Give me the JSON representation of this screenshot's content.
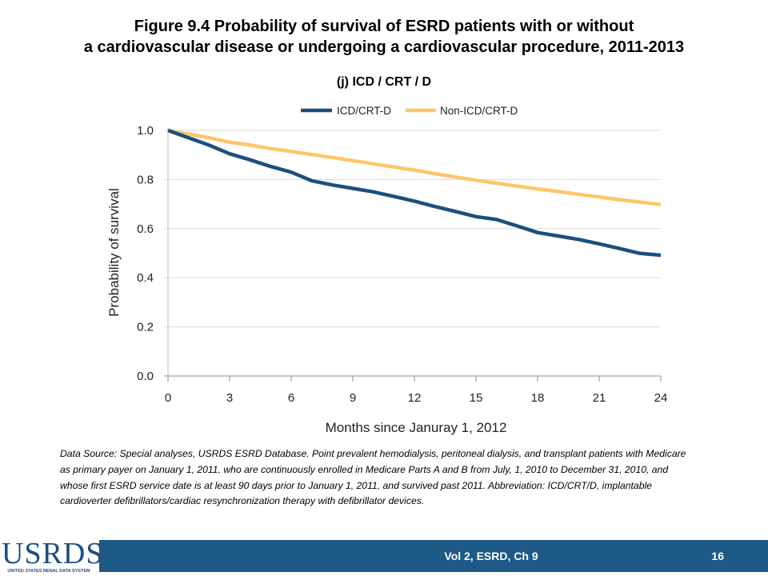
{
  "title": {
    "line1": "Figure 9.4 Probability of survival of ESRD patients with or without",
    "line2": "a cardiovascular disease or undergoing a cardiovascular procedure, 2011-2013"
  },
  "footnote": "Data Source: Special analyses, USRDS ESRD Database. Point prevalent hemodialysis, peritoneal dialysis, and transplant patients with Medicare as primary payer on January 1, 2011, who are continuously enrolled in Medicare Parts A and B from July, 1, 2010 to December 31, 2010, and whose first ESRD service date is at least 90 days prior to January 1, 2011, and survived past 2011. Abbreviation: ICD/CRT/D, implantable cardioverter defibrillators/cardiac resynchronization therapy with defibrillator devices.",
  "footer": {
    "label": "Vol 2, ESRD, Ch 9",
    "page": "16",
    "bar_color": "#1d5a85"
  },
  "logo": {
    "word": "USRDS",
    "tagline": "UNITED STATES RENAL DATA SYSTEM"
  },
  "chart_data": {
    "type": "line",
    "subtitle": "(j) ICD / CRT / D",
    "xlabel": "Months since Januray 1, 2012",
    "ylabel": "Probability of survival",
    "xlim": [
      0,
      24
    ],
    "ylim": [
      0,
      1
    ],
    "xticks": [
      0,
      3,
      6,
      9,
      12,
      15,
      18,
      21,
      24
    ],
    "xtick_labels": [
      "0",
      "3",
      "6",
      "9",
      "12",
      "15",
      "18",
      "21",
      "24"
    ],
    "yticks": [
      0,
      0.2,
      0.4,
      0.6,
      0.8,
      1.0
    ],
    "ytick_labels": [
      "0.0",
      "0.2",
      "0.4",
      "0.6",
      "0.8",
      "1.0"
    ],
    "grid": "horizontal",
    "legend_position": "top",
    "series": [
      {
        "name": "ICD/CRT-D",
        "color": "#1d4f7c",
        "x": [
          0,
          1,
          2,
          3,
          4,
          5,
          6,
          7,
          8,
          9,
          10,
          11,
          12,
          13,
          14,
          15,
          16,
          17,
          18,
          19,
          20,
          21,
          22,
          23,
          24
        ],
        "y": [
          1.0,
          0.97,
          0.94,
          0.905,
          0.88,
          0.853,
          0.83,
          0.795,
          0.778,
          0.764,
          0.75,
          0.731,
          0.712,
          0.69,
          0.67,
          0.649,
          0.637,
          0.611,
          0.584,
          0.57,
          0.556,
          0.538,
          0.519,
          0.499,
          0.492
        ]
      },
      {
        "name": "Non-ICD/CRT-D",
        "color": "#fcc66a",
        "x": [
          0,
          1,
          2,
          3,
          4,
          5,
          6,
          7,
          8,
          9,
          10,
          11,
          12,
          13,
          14,
          15,
          16,
          17,
          18,
          19,
          20,
          21,
          22,
          23,
          24
        ],
        "y": [
          1.0,
          0.985,
          0.97,
          0.952,
          0.94,
          0.926,
          0.914,
          0.902,
          0.89,
          0.877,
          0.864,
          0.851,
          0.838,
          0.824,
          0.81,
          0.797,
          0.785,
          0.773,
          0.762,
          0.751,
          0.74,
          0.729,
          0.718,
          0.708,
          0.698
        ]
      }
    ]
  }
}
